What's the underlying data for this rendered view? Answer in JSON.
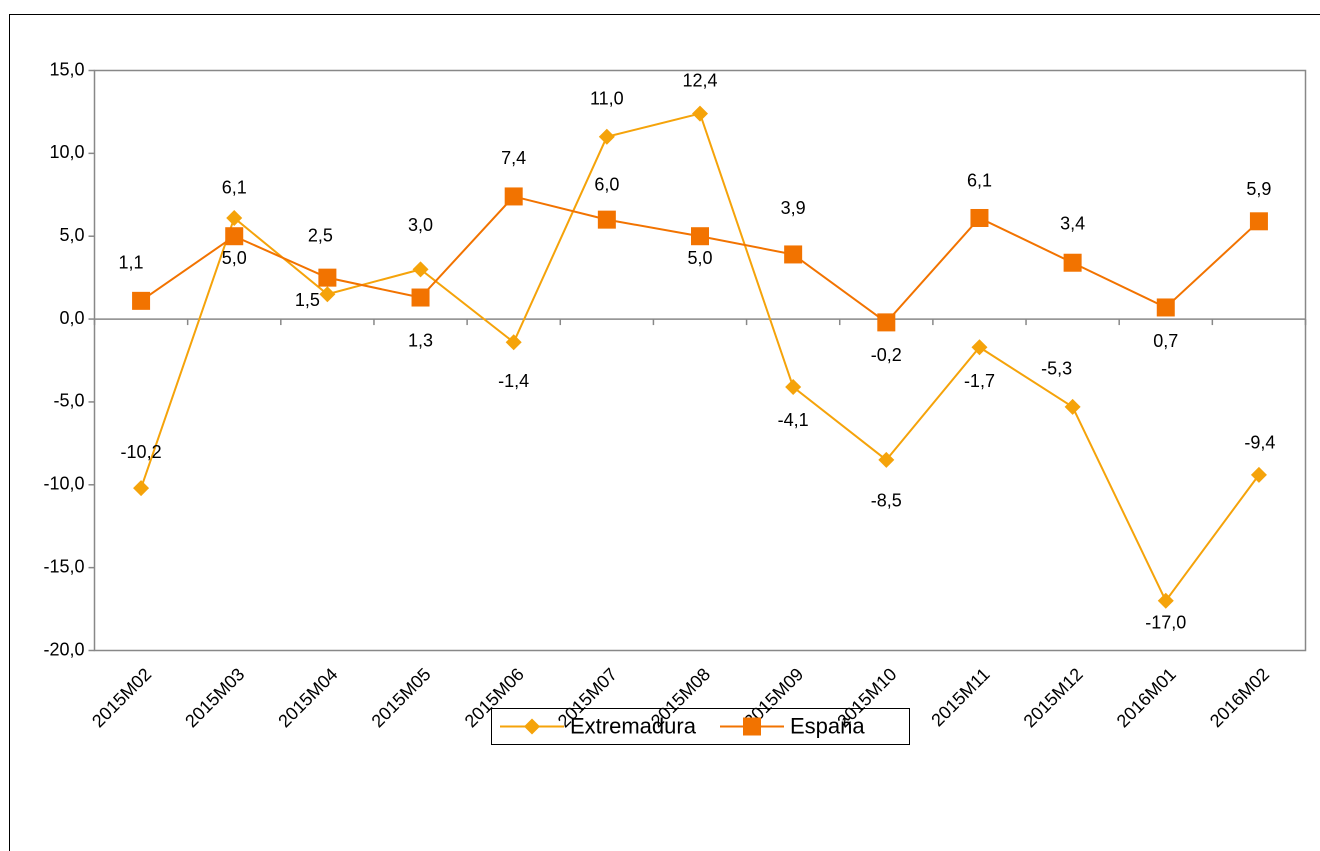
{
  "chart_data": {
    "type": "line",
    "categories": [
      "2015M02",
      "2015M03",
      "2015M04",
      "2015M05",
      "2015M06",
      "2015M07",
      "2015M08",
      "2015M09",
      "2015M10",
      "2015M11",
      "2015M12",
      "2016M01",
      "2016M02"
    ],
    "series": [
      {
        "name": "Extremadura",
        "color": "#f5a30a",
        "marker": "diamond",
        "values": [
          -10.2,
          6.1,
          1.5,
          3.0,
          -1.4,
          11.0,
          12.4,
          -4.1,
          -8.5,
          -1.7,
          -5.3,
          -17.0,
          -9.4
        ],
        "value_labels": [
          "-10,2",
          "6,1",
          "1,5",
          "3,0",
          "-1,4",
          "11,0",
          "12,4",
          "-4,1",
          "-8,5",
          "-1,7",
          "-5,3",
          "-17,0",
          "-9,4"
        ]
      },
      {
        "name": "España",
        "color": "#f27300",
        "marker": "square",
        "values": [
          1.1,
          5.0,
          2.5,
          1.3,
          7.4,
          6.0,
          5.0,
          3.9,
          -0.2,
          6.1,
          3.4,
          0.7,
          5.9
        ],
        "value_labels": [
          "1,1",
          "5,0",
          "2,5",
          "1,3",
          "7,4",
          "6,0",
          "5,0",
          "3,9",
          "-0,2",
          "6,1",
          "3,4",
          "0,7",
          "5,9"
        ]
      }
    ],
    "ylim": [
      -20,
      15
    ],
    "yticks": [
      {
        "value": -20,
        "label": "-20,0"
      },
      {
        "value": -15,
        "label": "-15,0"
      },
      {
        "value": -10,
        "label": "-10,0"
      },
      {
        "value": -5,
        "label": "-5,0"
      },
      {
        "value": 0,
        "label": "0,0"
      },
      {
        "value": 5,
        "label": "5,0"
      },
      {
        "value": 10,
        "label": "10,0"
      },
      {
        "value": 15,
        "label": "15,0"
      }
    ],
    "legend": "bottom"
  }
}
